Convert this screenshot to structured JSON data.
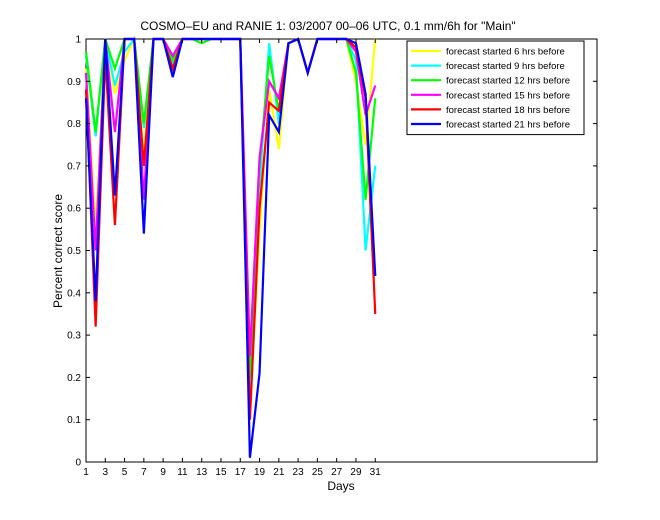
{
  "chart_data": {
    "type": "line",
    "title": "COSMO–EU and RANIE 1: 03/2007 00–06 UTC, 0.1 mm/6h for \"Main\"",
    "xlabel": "Days",
    "ylabel": "Percent correct score",
    "xlim": [
      1,
      54
    ],
    "ylim": [
      0,
      1
    ],
    "xticks": [
      1,
      3,
      5,
      7,
      9,
      11,
      13,
      15,
      17,
      19,
      21,
      23,
      25,
      27,
      29,
      31
    ],
    "yticks": [
      0,
      0.1,
      0.2,
      0.3,
      0.4,
      0.5,
      0.6,
      0.7,
      0.8,
      0.9,
      1
    ],
    "ytick_labels": [
      "0",
      "0.1",
      "0.2",
      "0.3",
      "0.4",
      "0.5",
      "0.6",
      "0.7",
      "0.8",
      "0.9",
      "1"
    ],
    "grid": false,
    "legend_position": "top-right",
    "series": [
      {
        "name": "forecast started 6 hrs before",
        "color": "#ffff00",
        "x": [
          1,
          2,
          3,
          4,
          5,
          6,
          7,
          8,
          9,
          10,
          11,
          12,
          13,
          14,
          15,
          16,
          17,
          18,
          19,
          20,
          21,
          22,
          23,
          24,
          25,
          26,
          27,
          28,
          29,
          30,
          31
        ],
        "y": [
          0.93,
          0.55,
          1.0,
          0.87,
          0.95,
          1.0,
          0.72,
          1.0,
          1.0,
          0.96,
          1.0,
          1.0,
          1.0,
          1.0,
          1.0,
          1.0,
          1.0,
          0.12,
          0.55,
          0.88,
          0.74,
          0.99,
          1.0,
          0.92,
          1.0,
          1.0,
          1.0,
          1.0,
          0.9,
          0.75,
          1.0
        ]
      },
      {
        "name": "forecast started 9 hrs before",
        "color": "#00ffff",
        "x": [
          1,
          2,
          3,
          4,
          5,
          6,
          7,
          8,
          9,
          10,
          11,
          12,
          13,
          14,
          15,
          16,
          17,
          18,
          19,
          20,
          21,
          22,
          23,
          24,
          25,
          26,
          27,
          28,
          29,
          30,
          31
        ],
        "y": [
          0.96,
          0.77,
          1.0,
          0.89,
          0.97,
          1.0,
          0.79,
          1.0,
          1.0,
          0.94,
          1.0,
          1.0,
          1.0,
          1.0,
          1.0,
          1.0,
          1.0,
          0.18,
          0.65,
          0.99,
          0.8,
          0.99,
          1.0,
          0.92,
          1.0,
          1.0,
          1.0,
          1.0,
          0.95,
          0.5,
          0.7
        ]
      },
      {
        "name": "forecast started 12 hrs before",
        "color": "#00ff00",
        "x": [
          1,
          2,
          3,
          4,
          5,
          6,
          7,
          8,
          9,
          10,
          11,
          12,
          13,
          14,
          15,
          16,
          17,
          18,
          19,
          20,
          21,
          22,
          23,
          24,
          25,
          26,
          27,
          28,
          29,
          30,
          31
        ],
        "y": [
          0.97,
          0.78,
          1.0,
          0.93,
          1.0,
          1.0,
          0.8,
          1.0,
          1.0,
          0.95,
          1.0,
          1.0,
          0.99,
          1.0,
          1.0,
          1.0,
          1.0,
          0.2,
          0.7,
          0.96,
          0.83,
          0.99,
          1.0,
          0.92,
          1.0,
          1.0,
          1.0,
          1.0,
          0.92,
          0.62,
          0.86
        ]
      },
      {
        "name": "forecast started 15 hrs before",
        "color": "#ff00ff",
        "x": [
          1,
          2,
          3,
          4,
          5,
          6,
          7,
          8,
          9,
          10,
          11,
          12,
          13,
          14,
          15,
          16,
          17,
          18,
          19,
          20,
          21,
          22,
          23,
          24,
          25,
          26,
          27,
          28,
          29,
          30,
          31
        ],
        "y": [
          0.92,
          0.5,
          1.0,
          0.78,
          1.0,
          1.0,
          0.62,
          1.0,
          1.0,
          0.96,
          1.0,
          1.0,
          1.0,
          1.0,
          1.0,
          1.0,
          1.0,
          0.25,
          0.72,
          0.9,
          0.86,
          0.99,
          1.0,
          0.92,
          1.0,
          1.0,
          1.0,
          1.0,
          0.97,
          0.82,
          0.89
        ]
      },
      {
        "name": "forecast started 18 hrs before",
        "color": "#ff0000",
        "x": [
          1,
          2,
          3,
          4,
          5,
          6,
          7,
          8,
          9,
          10,
          11,
          12,
          13,
          14,
          15,
          16,
          17,
          18,
          19,
          20,
          21,
          22,
          23,
          24,
          25,
          26,
          27,
          28,
          29,
          30,
          31
        ],
        "y": [
          0.88,
          0.32,
          0.96,
          0.56,
          1.0,
          1.0,
          0.7,
          1.0,
          1.0,
          0.93,
          1.0,
          1.0,
          1.0,
          1.0,
          1.0,
          1.0,
          1.0,
          0.1,
          0.6,
          0.85,
          0.83,
          0.99,
          1.0,
          0.92,
          1.0,
          1.0,
          1.0,
          1.0,
          0.98,
          0.86,
          0.35
        ]
      },
      {
        "name": "forecast started 21 hrs before",
        "color": "#0000ff",
        "x": [
          1,
          2,
          3,
          4,
          5,
          6,
          7,
          8,
          9,
          10,
          11,
          12,
          13,
          14,
          15,
          16,
          17,
          18,
          19,
          20,
          21,
          22,
          23,
          24,
          25,
          26,
          27,
          28,
          29,
          30,
          31
        ],
        "y": [
          0.86,
          0.38,
          1.0,
          0.63,
          1.0,
          1.0,
          0.54,
          1.0,
          1.0,
          0.91,
          1.0,
          1.0,
          1.0,
          1.0,
          1.0,
          1.0,
          1.0,
          0.01,
          0.21,
          0.82,
          0.78,
          0.99,
          1.0,
          0.92,
          1.0,
          1.0,
          1.0,
          1.0,
          0.99,
          0.87,
          0.44
        ]
      }
    ]
  }
}
